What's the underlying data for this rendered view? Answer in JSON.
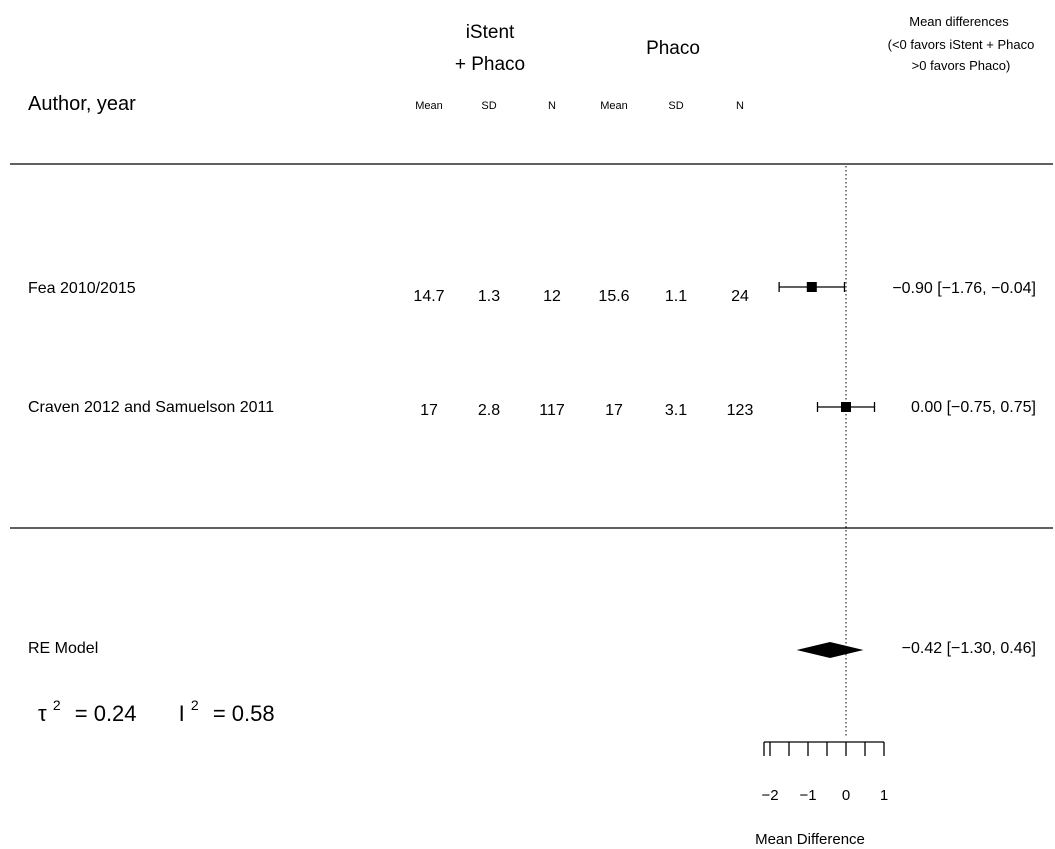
{
  "chart_data": {
    "type": "forest",
    "header": {
      "author_label": "Author, year",
      "group1": [
        "iStent",
        "+ Phaco"
      ],
      "group2": "Phaco",
      "subcols": [
        "Mean",
        "SD",
        "N",
        "Mean",
        "SD",
        "N"
      ],
      "effect_title": [
        "Mean differences",
        "(<0 favors iStent + Phaco",
        ">0 favors Phaco)"
      ]
    },
    "studies": [
      {
        "author": "Fea 2010/2015",
        "istent_mean": "14.7",
        "istent_sd": "1.3",
        "istent_n": "12",
        "phaco_mean": "15.6",
        "phaco_sd": "1.1",
        "phaco_n": "24",
        "estimate": -0.9,
        "ci_low": -1.76,
        "ci_high": -0.04,
        "label": "−0.90 [−1.76, −0.04]"
      },
      {
        "author": "Craven 2012 and Samuelson 2011",
        "istent_mean": "17",
        "istent_sd": "2.8",
        "istent_n": "117",
        "phaco_mean": "17",
        "phaco_sd": "3.1",
        "phaco_n": "123",
        "estimate": 0.0,
        "ci_low": -0.75,
        "ci_high": 0.75,
        "label": "0.00 [−0.75, 0.75]"
      }
    ],
    "summary": {
      "label": "RE Model",
      "estimate": -0.42,
      "ci_low": -1.3,
      "ci_high": 0.46,
      "text": "−0.42 [−1.30, 0.46]"
    },
    "heterogeneity": {
      "tau_symbol": "τ",
      "tau_sup": "2",
      "tau_text": "= 0.24",
      "i_symbol": "I",
      "i_sup": "2",
      "i_text": "= 0.58"
    },
    "xaxis": {
      "label": "Mean Difference",
      "ticks": [
        -2,
        -1,
        0,
        1
      ],
      "tick_labels": [
        "−2",
        "−1",
        "0",
        "1"
      ],
      "range": [
        -2,
        1
      ]
    },
    "reference_line": 0
  }
}
